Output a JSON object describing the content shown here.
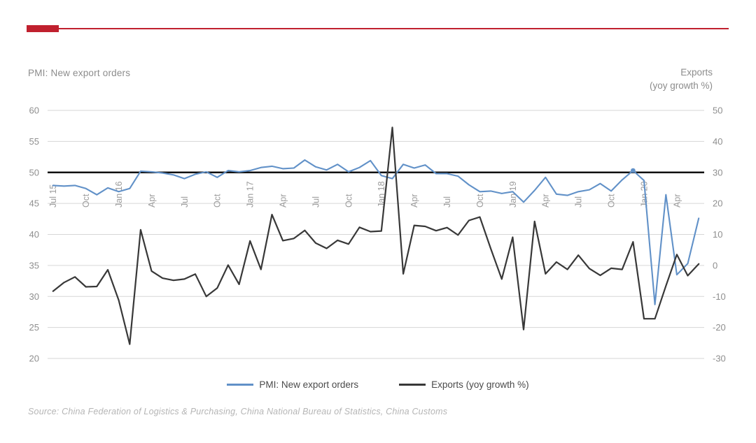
{
  "header": {
    "accent_color": "#c0202e"
  },
  "axis_titles": {
    "left": "PMI: New export orders",
    "right_line1": "Exports",
    "right_line2": "(yoy growth %)"
  },
  "legend": [
    {
      "label": "PMI: New export orders",
      "color": "#6191c8"
    },
    {
      "label": "Exports (yoy growth %)",
      "color": "#383838"
    }
  ],
  "source": "Source: China Federation of Logistics & Purchasing, China National Bureau of Statistics, China Customs",
  "chart_data": {
    "type": "line",
    "title": "",
    "x": [
      "2015-07",
      "2015-08",
      "2015-09",
      "2015-10",
      "2015-11",
      "2015-12",
      "2016-01",
      "2016-02",
      "2016-03",
      "2016-04",
      "2016-05",
      "2016-06",
      "2016-07",
      "2016-08",
      "2016-09",
      "2016-10",
      "2016-11",
      "2016-12",
      "2017-01",
      "2017-02",
      "2017-03",
      "2017-04",
      "2017-05",
      "2017-06",
      "2017-07",
      "2017-08",
      "2017-09",
      "2017-10",
      "2017-11",
      "2017-12",
      "2018-01",
      "2018-02",
      "2018-03",
      "2018-04",
      "2018-05",
      "2018-06",
      "2018-07",
      "2018-08",
      "2018-09",
      "2018-10",
      "2018-11",
      "2018-12",
      "2019-01",
      "2019-02",
      "2019-03",
      "2019-04",
      "2019-05",
      "2019-06",
      "2019-07",
      "2019-08",
      "2019-09",
      "2019-10",
      "2019-11",
      "2019-12",
      "2020-01",
      "2020-02",
      "2020-03",
      "2020-04",
      "2020-05",
      "2020-06"
    ],
    "x_tick_labels": [
      "Jul 15",
      "Oct",
      "Jan 16",
      "Apr",
      "Jul",
      "Oct",
      "Jan 17",
      "Apr",
      "Jul",
      "Oct",
      "Jan 18",
      "Apr",
      "Jul",
      "Oct",
      "Jan 19",
      "Apr",
      "Jul",
      "Oct",
      "Jan 20",
      "Apr"
    ],
    "x_tick_every": 3,
    "left_axis": {
      "label": "PMI: New export orders",
      "min": 20,
      "max": 60,
      "ticks": [
        60,
        55,
        50,
        45,
        40,
        35,
        30,
        25,
        20
      ]
    },
    "right_axis": {
      "label": "Exports (yoy growth %)",
      "min": -30,
      "max": 50,
      "ticks": [
        50,
        40,
        30,
        20,
        10,
        0,
        -10,
        -20,
        -30
      ]
    },
    "grid": true,
    "legend_position": "bottom",
    "reference_line": {
      "axis": "left",
      "value": 50,
      "color": "#111111"
    },
    "marker_point": {
      "series": 0,
      "index": 53
    },
    "series": [
      {
        "name": "PMI: New export orders",
        "axis": "left",
        "color": "#6191c8",
        "values": [
          47.9,
          47.8,
          47.9,
          47.4,
          46.4,
          47.5,
          46.9,
          47.4,
          50.2,
          50.1,
          49.9,
          49.6,
          49.0,
          49.7,
          50.1,
          49.2,
          50.3,
          50.1,
          50.3,
          50.8,
          51.0,
          50.6,
          50.7,
          52.0,
          50.9,
          50.4,
          51.3,
          50.1,
          50.8,
          51.9,
          49.5,
          49.0,
          51.3,
          50.7,
          51.2,
          49.8,
          49.8,
          49.4,
          48.0,
          46.9,
          47.0,
          46.6,
          46.9,
          45.2,
          47.1,
          49.2,
          46.5,
          46.3,
          46.9,
          47.2,
          48.2,
          47.0,
          48.8,
          50.3,
          48.7,
          28.7,
          46.4,
          33.5,
          35.3,
          42.6
        ]
      },
      {
        "name": "Exports (yoy growth %)",
        "axis": "right",
        "color": "#383838",
        "values": [
          -8.3,
          -5.5,
          -3.7,
          -6.9,
          -6.8,
          -1.4,
          -11.2,
          -25.4,
          11.5,
          -1.8,
          -4.1,
          -4.8,
          -4.4,
          -2.8,
          -10.0,
          -7.3,
          0.1,
          -6.1,
          7.9,
          -1.3,
          16.4,
          8.0,
          8.7,
          11.3,
          7.2,
          5.5,
          8.1,
          6.9,
          12.3,
          10.9,
          11.1,
          44.5,
          -2.7,
          12.9,
          12.6,
          11.2,
          12.2,
          9.8,
          14.5,
          15.6,
          5.4,
          -4.4,
          9.1,
          -20.7,
          14.2,
          -2.7,
          1.1,
          -1.3,
          3.3,
          -1.0,
          -3.2,
          -0.9,
          -1.3,
          7.6,
          -17.2,
          -17.2,
          -6.6,
          3.5,
          -3.3,
          0.5
        ]
      }
    ],
    "style": {
      "gridline_color": "#d6d6d6",
      "tick_label_color": "#8f8f8f",
      "x_label_color": "#9c9c9c"
    }
  }
}
